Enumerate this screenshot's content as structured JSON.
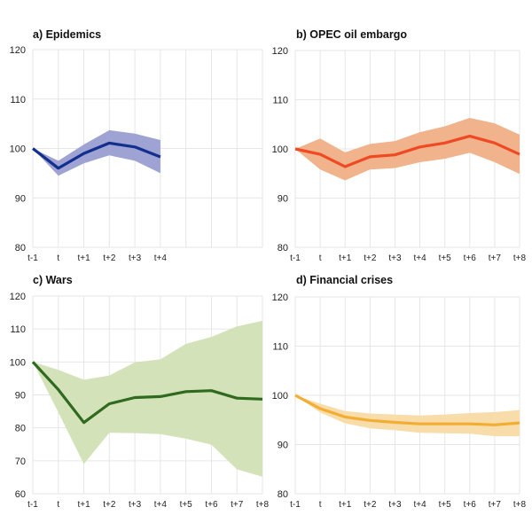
{
  "chart_data": [
    {
      "type": "line",
      "title": "a) Epidemics",
      "xlabel": "",
      "ylabel": "",
      "ylim": [
        80,
        120
      ],
      "yticks": [
        80,
        90,
        100,
        110,
        120
      ],
      "x": [
        "t-1",
        "t",
        "t+1",
        "t+2",
        "t+3",
        "t+4"
      ],
      "x_slots": 10,
      "grid": true,
      "colors": {
        "line": "#132f8e",
        "band": "#9ea3d3"
      },
      "series": [
        {
          "name": "central",
          "values": [
            100,
            96.0,
            99.0,
            101.1,
            100.3,
            98.3
          ]
        },
        {
          "name": "upper",
          "values": [
            100,
            97.5,
            100.8,
            103.7,
            103.0,
            101.7
          ]
        },
        {
          "name": "lower",
          "values": [
            100,
            94.5,
            97.0,
            98.6,
            97.5,
            95.0
          ]
        }
      ]
    },
    {
      "type": "line",
      "title": "b) OPEC oil embargo",
      "xlabel": "",
      "ylabel": "",
      "ylim": [
        80,
        120
      ],
      "yticks": [
        80,
        90,
        100,
        110,
        120
      ],
      "x": [
        "t-1",
        "t",
        "t+1",
        "t+2",
        "t+3",
        "t+4",
        "t+5",
        "t+6",
        "t+7",
        "t+8"
      ],
      "x_slots": 10,
      "grid": true,
      "colors": {
        "line": "#ef4a23",
        "band": "#f0b38c"
      },
      "series": [
        {
          "name": "central",
          "values": [
            100,
            98.9,
            96.4,
            98.4,
            98.8,
            100.4,
            101.2,
            102.6,
            101.2,
            98.9
          ]
        },
        {
          "name": "upper",
          "values": [
            100,
            102.1,
            99.3,
            101.0,
            101.6,
            103.4,
            104.6,
            106.3,
            105.2,
            102.9
          ]
        },
        {
          "name": "lower",
          "values": [
            100,
            95.8,
            93.6,
            95.8,
            96.1,
            97.3,
            98.0,
            99.2,
            97.3,
            94.9
          ]
        }
      ]
    },
    {
      "type": "line",
      "title": "c) Wars",
      "xlabel": "",
      "ylabel": "",
      "ylim": [
        60,
        120
      ],
      "yticks": [
        60,
        70,
        80,
        90,
        100,
        110,
        120
      ],
      "x": [
        "t-1",
        "t",
        "t+1",
        "t+2",
        "t+3",
        "t+4",
        "t+5",
        "t+6",
        "t+7",
        "t+8"
      ],
      "x_slots": 10,
      "grid": true,
      "colors": {
        "line": "#2f6a1f",
        "band": "#d4e2b9"
      },
      "series": [
        {
          "name": "central",
          "values": [
            100,
            91.6,
            81.6,
            87.3,
            89.2,
            89.5,
            91.0,
            91.3,
            89.0,
            88.7
          ]
        },
        {
          "name": "upper",
          "values": [
            100,
            97.6,
            94.6,
            95.9,
            99.9,
            100.8,
            105.5,
            107.6,
            110.8,
            112.5
          ]
        },
        {
          "name": "lower",
          "values": [
            100,
            84.7,
            69.0,
            78.5,
            78.4,
            78.1,
            76.7,
            74.9,
            67.4,
            65.2
          ]
        }
      ]
    },
    {
      "type": "line",
      "title": "d) Financial crises",
      "xlabel": "",
      "ylabel": "",
      "ylim": [
        80,
        120
      ],
      "yticks": [
        80,
        90,
        100,
        110,
        120
      ],
      "x": [
        "t-1",
        "t",
        "t+1",
        "t+2",
        "t+3",
        "t+4",
        "t+5",
        "t+6",
        "t+7",
        "t+8"
      ],
      "x_slots": 10,
      "grid": true,
      "colors": {
        "line": "#f2ae33",
        "band": "#f8dcaa"
      },
      "series": [
        {
          "name": "central",
          "values": [
            100,
            97.3,
            95.6,
            94.9,
            94.5,
            94.2,
            94.2,
            94.2,
            94.0,
            94.4
          ]
        },
        {
          "name": "upper",
          "values": [
            100,
            98.3,
            96.8,
            96.3,
            96.1,
            95.9,
            96.1,
            96.4,
            96.6,
            97.0
          ]
        },
        {
          "name": "lower",
          "values": [
            100,
            96.5,
            94.3,
            93.3,
            92.9,
            92.4,
            92.3,
            92.2,
            91.7,
            91.7
          ]
        }
      ]
    }
  ]
}
